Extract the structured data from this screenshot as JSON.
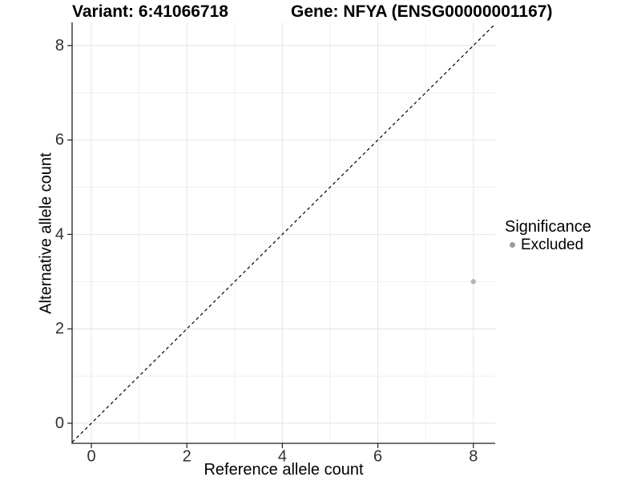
{
  "titles": {
    "variant": "Variant: 6:41066718",
    "gene": "Gene: NFYA (ENSG00000001167)"
  },
  "chart_data": {
    "type": "scatter",
    "xlabel": "Reference allele count",
    "ylabel": "Alternative allele count",
    "xlim": [
      -0.4,
      8.45
    ],
    "ylim": [
      -0.42,
      8.49
    ],
    "x_ticks": [
      0,
      2,
      4,
      6,
      8
    ],
    "y_ticks": [
      0,
      2,
      4,
      6,
      8
    ],
    "x_minor": [
      1,
      3,
      5,
      7
    ],
    "y_minor": [
      1,
      3,
      5,
      7
    ],
    "grid": "on",
    "identity_line": {
      "slope": 1,
      "intercept": 0,
      "style": "dashed",
      "color": "#000000"
    },
    "series": [
      {
        "name": "Excluded",
        "color": "#b5b5b5",
        "points": [
          {
            "x": 8,
            "y": 3
          }
        ]
      }
    ],
    "legend": {
      "title": "Significance",
      "position": "right",
      "items": [
        {
          "label": "Excluded",
          "color": "#9a9a9a"
        }
      ]
    }
  },
  "style": {
    "background": "#ffffff",
    "axis_color": "#1f1f1f",
    "tick_text_color": "#303030",
    "grid_major": "#e4e4e4",
    "grid_minor": "#efefef"
  }
}
